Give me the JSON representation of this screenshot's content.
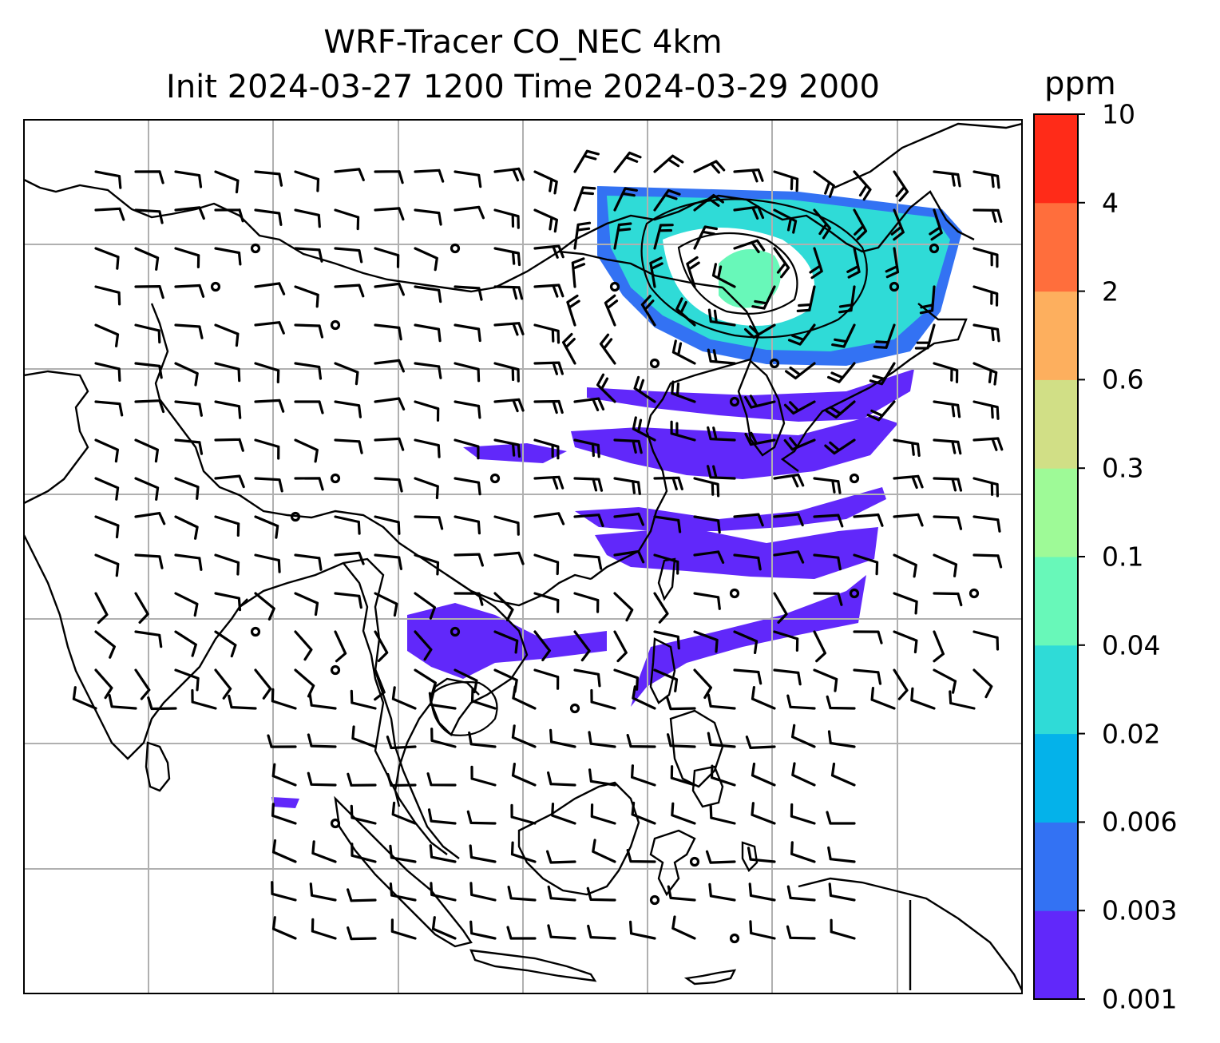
{
  "title": {
    "line1": "WRF-Tracer CO_NEC 4km",
    "line2": "Init 2024-03-27 1200 Time 2024-03-29 2000"
  },
  "colorbar": {
    "unit": "ppm",
    "levels": [
      "0.001",
      "0.003",
      "0.006",
      "0.02",
      "0.04",
      "0.1",
      "0.3",
      "0.6",
      "2",
      "4",
      "10"
    ],
    "colors": [
      "#6128fa",
      "#3372f3",
      "#04b2ea",
      "#2fdbd7",
      "#68f8b9",
      "#9efa97",
      "#d1df86",
      "#fdaf5e",
      "#ff6e3c",
      "#ff2b18"
    ]
  },
  "map": {
    "graticule_color": "#b0b0b0",
    "coastline_color": "#000000",
    "barb_color": "#000000",
    "plume_colors": {
      "low": "#6128fa",
      "mid": "#3372f3",
      "high": "#2fdbd7",
      "peak": "#68f8b9"
    }
  }
}
